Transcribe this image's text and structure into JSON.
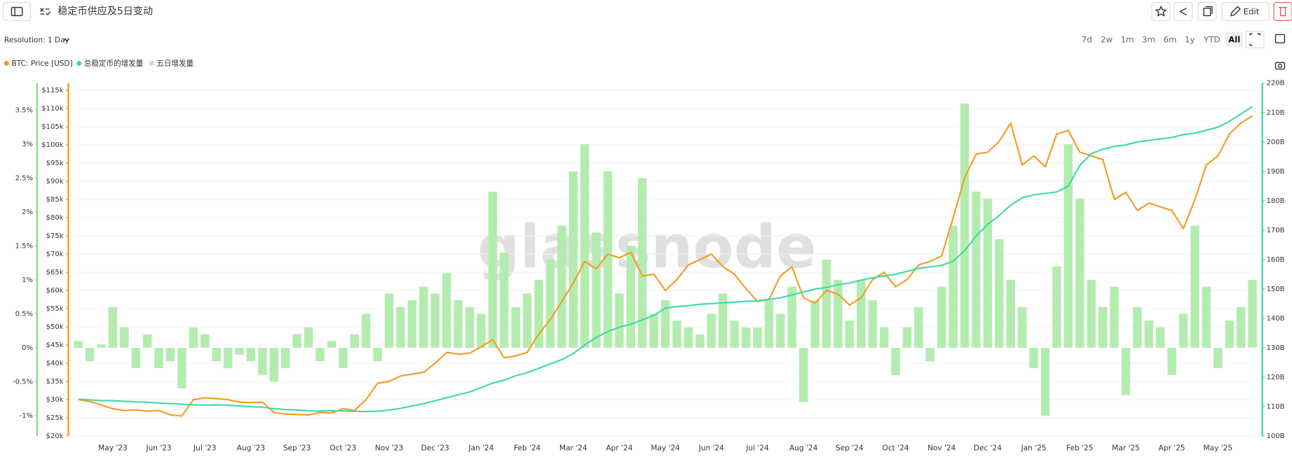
{
  "ui": {
    "title": "稳定币供应及5日变动",
    "edit": "Edit",
    "resolution": "Resolution: 1 Day",
    "ranges": [
      "7d",
      "2w",
      "1m",
      "3m",
      "6m",
      "1y",
      "YTD",
      "All"
    ],
    "active_range": "All",
    "watermark": "glassnode"
  },
  "chart_data": {
    "type": "line",
    "categories": [
      null,
      null,
      null,
      "May '23",
      null,
      null,
      null,
      "Jun '23",
      null,
      null,
      null,
      "Jul '23",
      null,
      null,
      null,
      "Aug '23",
      null,
      null,
      null,
      "Sep '23",
      null,
      null,
      null,
      "Oct '23",
      null,
      null,
      null,
      "Nov '23",
      null,
      null,
      null,
      "Dec '23",
      null,
      null,
      null,
      "Jan '24",
      null,
      null,
      null,
      "Feb '24",
      null,
      null,
      null,
      "Mar '24",
      null,
      null,
      null,
      "Apr '24",
      null,
      null,
      null,
      "May '24",
      null,
      null,
      null,
      "Jun '24",
      null,
      null,
      null,
      "Jul '24",
      null,
      null,
      null,
      "Aug '24",
      null,
      null,
      null,
      "Sep '24",
      null,
      null,
      null,
      "Oct '24",
      null,
      null,
      null,
      "Nov '24",
      null,
      null,
      null,
      "Dec '24",
      null,
      null,
      null,
      "Jan '25",
      null,
      null,
      null,
      "Feb '25",
      null,
      null,
      null,
      "Mar '25",
      null,
      null,
      null,
      "Apr '25",
      null,
      null,
      null,
      "May '25",
      null,
      null,
      null
    ],
    "series": [
      {
        "name": "BTC: Price [USD]",
        "color": "#f39c1f",
        "axis": "y3",
        "type": "line",
        "values": [
          30000,
          29500,
          28500,
          27500,
          27000,
          27200,
          26800,
          27000,
          25800,
          25500,
          30000,
          30500,
          30300,
          30000,
          29300,
          29200,
          29300,
          26500,
          26000,
          25900,
          25800,
          26500,
          26300,
          27500,
          27000,
          30000,
          34500,
          35000,
          36500,
          37000,
          37500,
          40000,
          43000,
          42500,
          42800,
          44500,
          46500,
          41500,
          42000,
          43000,
          48000,
          52000,
          57000,
          62000,
          68000,
          66000,
          70000,
          69000,
          70500,
          64000,
          64500,
          60000,
          63000,
          67000,
          68500,
          70000,
          66500,
          64500,
          60500,
          57000,
          57500,
          64000,
          66500,
          58000,
          56500,
          60000,
          59000,
          56000,
          58000,
          63000,
          65000,
          61000,
          63000,
          67000,
          68000,
          69500,
          80000,
          91000,
          97500,
          98000,
          101000,
          106000,
          94500,
          97000,
          94000,
          103000,
          104000,
          98000,
          97000,
          96000,
          85000,
          87000,
          82000,
          84000,
          83000,
          82000,
          77000,
          85000,
          94500,
          97000,
          103000,
          106000,
          108000
        ]
      },
      {
        "name": "总稳定币的增发量",
        "color": "#3fd9a6",
        "axis": "y2",
        "type": "line",
        "values": [
          112.5,
          112.3,
          112.0,
          112.0,
          111.8,
          111.6,
          111.5,
          111.2,
          111.0,
          110.8,
          110.6,
          110.5,
          110.6,
          110.5,
          110.2,
          110.0,
          109.8,
          109.3,
          109.0,
          108.8,
          108.6,
          108.5,
          108.6,
          108.5,
          108.4,
          108.3,
          108.4,
          108.8,
          109.4,
          110.2,
          111.0,
          112.0,
          113.0,
          114.0,
          115.0,
          116.5,
          118.0,
          119.0,
          120.5,
          121.5,
          123.0,
          124.5,
          126.0,
          128.0,
          131.0,
          133.5,
          135.5,
          137.0,
          138.0,
          139.5,
          141.0,
          143.5,
          144.0,
          144.3,
          144.8,
          145.0,
          145.3,
          145.5,
          145.8,
          146.0,
          146.5,
          147.0,
          148.0,
          149.0,
          150.0,
          150.5,
          151.5,
          152.0,
          153.0,
          153.8,
          154.5,
          155.0,
          156.0,
          157.0,
          157.5,
          158.0,
          159.5,
          163.0,
          168.0,
          172.0,
          175.0,
          178.5,
          181.0,
          182.0,
          182.5,
          183.0,
          185.0,
          192.0,
          196.0,
          197.5,
          198.5,
          199.0,
          200.0,
          200.5,
          201.0,
          201.5,
          202.5,
          203.0,
          204.0,
          205.0,
          207.0,
          209.5,
          212.0
        ]
      },
      {
        "name": "五日增发量",
        "color": "#b4ecb0",
        "axis": "y",
        "type": "bar",
        "values": [
          0.1,
          -0.2,
          0.05,
          0.6,
          0.3,
          -0.3,
          0.2,
          -0.3,
          -0.2,
          -0.6,
          0.3,
          0.2,
          -0.2,
          -0.3,
          -0.1,
          -0.2,
          -0.4,
          -0.5,
          -0.3,
          0.2,
          0.3,
          -0.2,
          0.1,
          -0.3,
          0.2,
          0.5,
          -0.2,
          0.8,
          0.6,
          0.7,
          0.9,
          0.8,
          1.1,
          0.7,
          0.6,
          0.5,
          2.3,
          1.4,
          0.6,
          0.8,
          1.0,
          1.3,
          1.8,
          2.6,
          3.0,
          1.7,
          2.6,
          0.8,
          1.5,
          2.5,
          0.5,
          0.7,
          0.4,
          0.3,
          0.2,
          0.5,
          0.8,
          0.4,
          0.3,
          0.3,
          0.7,
          0.5,
          0.9,
          -0.8,
          0.7,
          1.3,
          1.0,
          0.4,
          1.0,
          0.7,
          0.3,
          -0.4,
          0.3,
          0.6,
          -0.2,
          0.9,
          1.8,
          3.6,
          2.3,
          2.2,
          1.6,
          1.0,
          0.6,
          -0.3,
          -1.0,
          1.2,
          3.0,
          2.2,
          1.0,
          0.6,
          0.9,
          -0.7,
          0.6,
          0.4,
          0.3,
          -0.4,
          0.5,
          1.8,
          0.9,
          -0.3,
          0.4,
          0.6,
          1.0
        ]
      }
    ],
    "ylim": [
      -1.3,
      3.9
    ],
    "yticks": [
      {
        "value": -1,
        "label": "-1%"
      },
      {
        "value": -0.5,
        "label": "-0.5%"
      },
      {
        "value": 0,
        "label": "0%"
      },
      {
        "value": 0.5,
        "label": "0.5%"
      },
      {
        "value": 1,
        "label": "1%"
      },
      {
        "value": 1.5,
        "label": "1.5%"
      },
      {
        "value": 2,
        "label": "2%"
      },
      {
        "value": 2.5,
        "label": "2.5%"
      },
      {
        "value": 3,
        "label": "3%"
      },
      {
        "value": 3.5,
        "label": "3.5%"
      }
    ],
    "y2lim": [
      100,
      220
    ],
    "y2ticks": [
      {
        "value": 100,
        "label": "100B"
      },
      {
        "value": 110,
        "label": "110B"
      },
      {
        "value": 120,
        "label": "120B"
      },
      {
        "value": 130,
        "label": "130B"
      },
      {
        "value": 140,
        "label": "140B"
      },
      {
        "value": 150,
        "label": "150B"
      },
      {
        "value": 160,
        "label": "160B"
      },
      {
        "value": 170,
        "label": "170B"
      },
      {
        "value": 180,
        "label": "180B"
      },
      {
        "value": 190,
        "label": "190B"
      },
      {
        "value": 200,
        "label": "200B"
      },
      {
        "value": 210,
        "label": "210B"
      },
      {
        "value": 220,
        "label": "220B"
      }
    ],
    "y3lim": [
      20000,
      117000
    ],
    "y3ticks": [
      {
        "value": 20000,
        "label": "$20k"
      },
      {
        "value": 25000,
        "label": "$25k"
      },
      {
        "value": 30000,
        "label": "$30k"
      },
      {
        "value": 35000,
        "label": "$35k"
      },
      {
        "value": 40000,
        "label": "$40k"
      },
      {
        "value": 45000,
        "label": "$45k"
      },
      {
        "value": 50000,
        "label": "$50k"
      },
      {
        "value": 55000,
        "label": "$55k"
      },
      {
        "value": 60000,
        "label": "$60k"
      },
      {
        "value": 65000,
        "label": "$65k"
      },
      {
        "value": 70000,
        "label": "$70k"
      },
      {
        "value": 75000,
        "label": "$75k"
      },
      {
        "value": 80000,
        "label": "$80k"
      },
      {
        "value": 85000,
        "label": "$85k"
      },
      {
        "value": 90000,
        "label": "$90k"
      },
      {
        "value": 95000,
        "label": "$95k"
      },
      {
        "value": 100000,
        "label": "$100k"
      },
      {
        "value": 105000,
        "label": "$105k"
      },
      {
        "value": 110000,
        "label": "$110k"
      },
      {
        "value": 115000,
        "label": "$115k"
      }
    ],
    "grid": true
  }
}
